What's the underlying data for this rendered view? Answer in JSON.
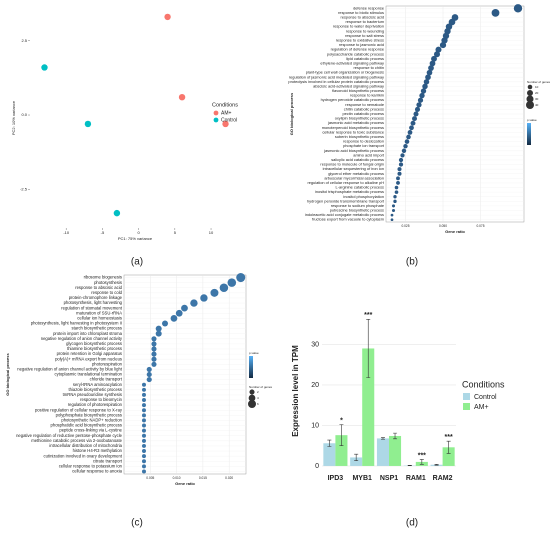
{
  "chart_data": [
    {
      "type": "scatter",
      "panel_label": "(a)",
      "xlabel": "PC1: 75% variance",
      "ylabel": "PC2: 10% variance",
      "xlim": [
        -15,
        14
      ],
      "ylim": [
        -3.8,
        3.6
      ],
      "xticks": [
        -10,
        -5,
        0,
        5,
        10
      ],
      "yticks": [
        {
          "value": -2.5,
          "label": "-2.5"
        },
        {
          "value": 0,
          "label": "0.0"
        },
        {
          "value": 2.5,
          "label": "2.5"
        }
      ],
      "legend_title": "Conditions",
      "series": [
        {
          "name": "AM+",
          "color": "#f8766d",
          "x": [
            4,
            6,
            12
          ],
          "values": [
            3.3,
            0.6,
            -0.3
          ]
        },
        {
          "name": "Control",
          "color": "#00bfc4",
          "x": [
            -13,
            -7,
            -3
          ],
          "values": [
            1.6,
            -0.3,
            -3.3
          ]
        }
      ]
    },
    {
      "type": "dot",
      "panel_label": "(b)",
      "xlabel": "Gene ratio",
      "ylabel": "GO biological process",
      "xlim": [
        0.012,
        0.104
      ],
      "xticks": [
        {
          "value": 0.025,
          "label": "0.025"
        },
        {
          "value": 0.05,
          "label": "0.050"
        },
        {
          "value": 0.075,
          "label": "0.075"
        }
      ],
      "color": "#2c5985",
      "colorbar": [
        "#132b43",
        "#56b1f7"
      ],
      "color_legend_title": "p.value",
      "size_legend_title": "Number of genes",
      "size_legend": [
        10,
        20,
        30,
        40
      ],
      "categories": [
        "defense response",
        "response to biotic stimulus",
        "response to abscisic acid",
        "response to bacterium",
        "response to water deprivation",
        "response to wounding",
        "response to salt stress",
        "response to oxidative stress",
        "response to jasmonic acid",
        "regulation of defense response",
        "polysaccharide catabolic process",
        "lipid catabolic process",
        "ethylene-activated signaling pathway",
        "response to chitin",
        "plant-type cell wall organization or biogenesis",
        "regulation of jasmonic acid mediated signaling pathway",
        "proteolysis involved in cellular protein catabolic process",
        "abscisic acid-activated signaling pathway",
        "flavonoid biosynthetic process",
        "response to karrikin",
        "hydrogen peroxide catabolic process",
        "response to nematode",
        "chitin catabolic process",
        "pectin catabolic process",
        "oxylipin biosynthetic process",
        "jasmonic acid metabolic process",
        "monoterpenoid biosynthetic process",
        "cellular response to toxic substance",
        "suberin biosynthetic process",
        "response to desiccation",
        "phosphate ion transport",
        "jasmonic acid biosynthetic process",
        "amino acid import",
        "salicylic acid catabolic process",
        "response to molecule of fungal origin",
        "intracellular sequestering of iron ion",
        "glycerol ether metabolic process",
        "arbuscular mycorrhizal association",
        "regulation of cellular response to alkaline pH",
        "L-arginine catabolic process",
        "inositol trisphosphate metabolic process",
        "inositol phosphorylation",
        "hydrogen peroxide transmembrane transport",
        "response to sodium phosphate",
        "putrescine biosynthetic process",
        "indoleacetic acid conjugate metabolic process",
        "fructose export from vacuole to cytoplasm"
      ],
      "values": [
        0.1,
        0.085,
        0.058,
        0.056,
        0.054,
        0.053,
        0.052,
        0.051,
        0.05,
        0.047,
        0.046,
        0.044,
        0.043,
        0.042,
        0.041,
        0.04,
        0.039,
        0.038,
        0.037,
        0.036,
        0.035,
        0.034,
        0.033,
        0.032,
        0.031,
        0.03,
        0.029,
        0.028,
        0.027,
        0.026,
        0.025,
        0.024,
        0.023,
        0.022,
        0.022,
        0.021,
        0.021,
        0.02,
        0.02,
        0.019,
        0.019,
        0.018,
        0.018,
        0.017,
        0.017,
        0.016,
        0.016
      ],
      "sizes": [
        45,
        38,
        26,
        25,
        24,
        23,
        23,
        22,
        22,
        20,
        20,
        19,
        18,
        18,
        17,
        17,
        16,
        16,
        15,
        15,
        14,
        14,
        13,
        13,
        12,
        12,
        11,
        11,
        10,
        10,
        9,
        9,
        8,
        8,
        8,
        7,
        7,
        6,
        6,
        5,
        5,
        4,
        4,
        3,
        3,
        2,
        2
      ]
    },
    {
      "type": "dot",
      "panel_label": "(c)",
      "xlabel": "Gene ratio",
      "ylabel": "GO biological process",
      "xlim": [
        0.0,
        0.0232
      ],
      "xticks": [
        {
          "value": 0.005,
          "label": "0.005"
        },
        {
          "value": 0.01,
          "label": "0.010"
        },
        {
          "value": 0.015,
          "label": "0.015"
        },
        {
          "value": 0.02,
          "label": "0.020"
        }
      ],
      "color": "#3d76a8",
      "colorbar": [
        "#132b43",
        "#56b1f7"
      ],
      "color_legend_title": "p.value",
      "size_legend_title": "Number of genes",
      "size_legend": [
        2,
        4,
        6
      ],
      "categories": [
        "ribosome biogenesis",
        "photosynthesis",
        "response to abscisic acid",
        "response to cold",
        "protein-chromophore linkage",
        "photosynthesis, light harvesting",
        "regulation of stomatal movement",
        "maturation of SSU-rRNA",
        "cellular ion homeostasis",
        "photosynthesis, light harvesting in photosystem II",
        "starch biosynthetic process",
        "protein import into chloroplast stroma",
        "negative regulation of anion channel activity",
        "glycogen biosynthetic process",
        "thiamine biosynthetic process",
        "protein retention in Golgi apparatus",
        "poly(A)+ mRNA export from nucleus",
        "photorespiration",
        "negative regulation of anion channel activity by blue light",
        "cytoplasmic translational termination",
        "chloride transport",
        "seryl-tRNA aminoacylation",
        "thiazole biosynthetic process",
        "tmRNA pseudouridine synthesis",
        "response to bleomycin",
        "regulation of photorespiration",
        "positive regulation of cellular response to X-ray",
        "polyphosphate biosynthetic process",
        "photosynthetic NADP+ reduction",
        "phosphatidic acid biosynthetic process",
        "peptide cross-linking via L-cystine",
        "negative regulation of reductive pentose-phosphate cycle",
        "methionine catabolic process via 2-oxobutanoate",
        "intracellular distribution of mitochondria",
        "histone H4-R3 methylation",
        "cutinization involved in ovary development",
        "citrate transport",
        "cellular response to potassium ion",
        "cellular response to anoxia"
      ],
      "values": [
        0.0222,
        0.0205,
        0.019,
        0.0172,
        0.0152,
        0.0133,
        0.0115,
        0.0105,
        0.0095,
        0.0078,
        0.0066,
        0.0066,
        0.0057,
        0.0057,
        0.0057,
        0.0057,
        0.0057,
        0.0057,
        0.0048,
        0.0048,
        0.0048,
        0.0038,
        0.0038,
        0.0038,
        0.0038,
        0.0038,
        0.0038,
        0.0038,
        0.0038,
        0.0038,
        0.0038,
        0.0038,
        0.0038,
        0.0038,
        0.0038,
        0.0038,
        0.0038,
        0.0038,
        0.0038
      ],
      "sizes": [
        8,
        7,
        7,
        6,
        5,
        5,
        4,
        4,
        4,
        3,
        3,
        3,
        2,
        2,
        2,
        2,
        2,
        2,
        2,
        2,
        2,
        1,
        1,
        1,
        1,
        1,
        1,
        1,
        1,
        1,
        1,
        1,
        1,
        1,
        1,
        1,
        1,
        1,
        1
      ]
    },
    {
      "type": "bar",
      "panel_label": "(d)",
      "ylabel": "Expression level in TPM",
      "categories": [
        "IPD3",
        "MYB1",
        "NSP1",
        "RAM1",
        "RAM2"
      ],
      "ylim": [
        -1,
        38
      ],
      "yticks": [
        0,
        10,
        20,
        30
      ],
      "grid": true,
      "legend_title": "Conditions",
      "series": [
        {
          "name": "Control",
          "color": "#add8e6",
          "values": [
            5.6,
            2.1,
            6.8,
            0.1,
            0.3
          ],
          "errors": [
            0.8,
            0.8,
            0.2,
            0.05,
            0.1
          ]
        },
        {
          "name": "AM+",
          "color": "#90ee90",
          "values": [
            7.6,
            29,
            7.4,
            1.0,
            4.6
          ],
          "errors": [
            2.6,
            7.2,
            0.7,
            0.6,
            1.5
          ]
        }
      ],
      "annotations": [
        {
          "category": "IPD3",
          "label": "*"
        },
        {
          "category": "MYB1",
          "label": "***"
        },
        {
          "category": "RAM1",
          "label": "***"
        },
        {
          "category": "RAM2",
          "label": "***"
        }
      ]
    }
  ]
}
